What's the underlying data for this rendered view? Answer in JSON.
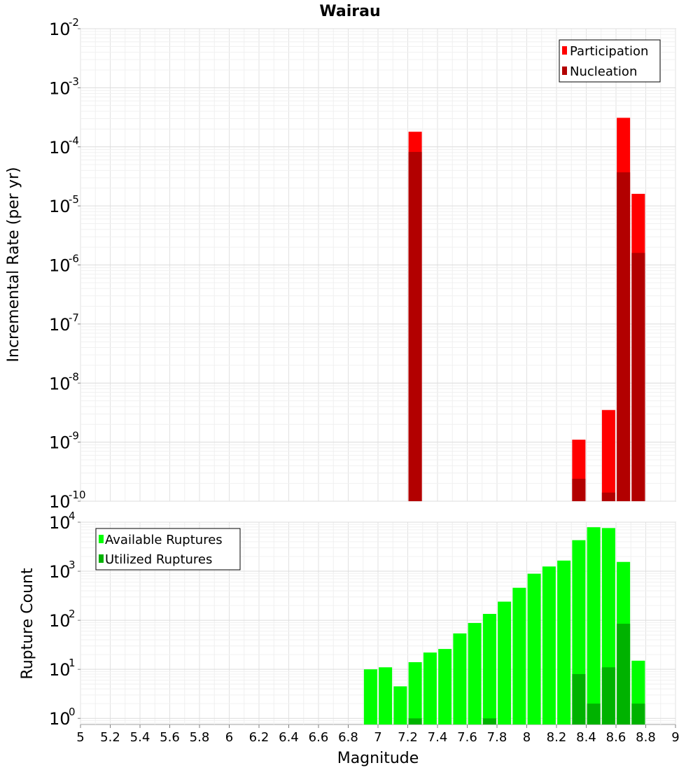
{
  "chart_data": [
    {
      "type": "bar",
      "title": "Wairau",
      "ylabel": "Incremental Rate (per yr)",
      "yscale": "log",
      "ylim": [
        1e-10,
        0.01
      ],
      "ytick_labels": [
        {
          "base": "10",
          "exp": "-10"
        },
        {
          "base": "10",
          "exp": "-9"
        },
        {
          "base": "10",
          "exp": "-8"
        },
        {
          "base": "10",
          "exp": "-7"
        },
        {
          "base": "10",
          "exp": "-6"
        },
        {
          "base": "10",
          "exp": "-5"
        },
        {
          "base": "10",
          "exp": "-4"
        },
        {
          "base": "10",
          "exp": "-3"
        },
        {
          "base": "10",
          "exp": "-2"
        }
      ],
      "legend": {
        "placement": "top-right",
        "entries": [
          "Participation",
          "Nucleation"
        ]
      },
      "grid": true,
      "series": [
        {
          "name": "Participation",
          "color": "#ff0000",
          "points": [
            {
              "x": 7.25,
              "y": 0.00018
            },
            {
              "x": 8.35,
              "y": 1.1e-09
            },
            {
              "x": 8.55,
              "y": 3.5e-09
            },
            {
              "x": 8.65,
              "y": 0.00031
            },
            {
              "x": 8.75,
              "y": 1.6e-05
            }
          ]
        },
        {
          "name": "Nucleation",
          "color": "#b20000",
          "points": [
            {
              "x": 7.25,
              "y": 8.2e-05
            },
            {
              "x": 8.35,
              "y": 2.4e-10
            },
            {
              "x": 8.55,
              "y": 1.4e-10
            },
            {
              "x": 8.65,
              "y": 3.7e-05
            },
            {
              "x": 8.75,
              "y": 1.6e-06
            }
          ]
        }
      ]
    },
    {
      "type": "bar",
      "xlabel": "Magnitude",
      "ylabel": "Rupture Count",
      "yscale": "log",
      "ylim": [
        0.75,
        10000
      ],
      "xlim": [
        5,
        9
      ],
      "xticks": [
        "5",
        "5.2",
        "5.4",
        "5.6",
        "5.8",
        "6",
        "6.2",
        "6.4",
        "6.6",
        "6.8",
        "7",
        "7.2",
        "7.4",
        "7.6",
        "7.8",
        "8",
        "8.2",
        "8.4",
        "8.6",
        "8.8",
        "9"
      ],
      "ytick_labels": [
        {
          "base": "10",
          "exp": "0"
        },
        {
          "base": "10",
          "exp": "1"
        },
        {
          "base": "10",
          "exp": "2"
        },
        {
          "base": "10",
          "exp": "3"
        },
        {
          "base": "10",
          "exp": "4"
        }
      ],
      "legend": {
        "placement": "top-left",
        "entries": [
          "Available Ruptures",
          "Utilized Ruptures"
        ]
      },
      "grid": true,
      "series": [
        {
          "name": "Available Ruptures",
          "color": "#00ff00",
          "points": [
            {
              "x": 6.95,
              "y": 10
            },
            {
              "x": 7.05,
              "y": 11
            },
            {
              "x": 7.15,
              "y": 4.5
            },
            {
              "x": 7.25,
              "y": 14
            },
            {
              "x": 7.35,
              "y": 22
            },
            {
              "x": 7.45,
              "y": 26
            },
            {
              "x": 7.55,
              "y": 54
            },
            {
              "x": 7.65,
              "y": 88
            },
            {
              "x": 7.75,
              "y": 135
            },
            {
              "x": 7.85,
              "y": 240
            },
            {
              "x": 7.95,
              "y": 460
            },
            {
              "x": 8.05,
              "y": 890
            },
            {
              "x": 8.15,
              "y": 1250
            },
            {
              "x": 8.25,
              "y": 1650
            },
            {
              "x": 8.35,
              "y": 4300
            },
            {
              "x": 8.45,
              "y": 7900
            },
            {
              "x": 8.55,
              "y": 7600
            },
            {
              "x": 8.65,
              "y": 1550
            },
            {
              "x": 8.75,
              "y": 15
            }
          ]
        },
        {
          "name": "Utilized Ruptures",
          "color": "#00b200",
          "points": [
            {
              "x": 7.25,
              "y": 1
            },
            {
              "x": 7.75,
              "y": 1
            },
            {
              "x": 8.35,
              "y": 8
            },
            {
              "x": 8.45,
              "y": 2
            },
            {
              "x": 8.55,
              "y": 11
            },
            {
              "x": 8.65,
              "y": 85
            },
            {
              "x": 8.75,
              "y": 2
            }
          ]
        }
      ]
    }
  ]
}
